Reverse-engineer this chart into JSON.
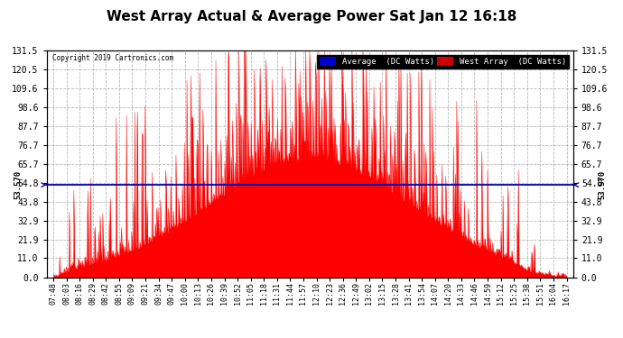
{
  "title": "West Array Actual & Average Power Sat Jan 12 16:18",
  "copyright": "Copyright 2019 Cartronics.com",
  "avg_line_value": 53.57,
  "ylim": [
    0.0,
    131.5
  ],
  "y_ticks": [
    0.0,
    11.0,
    21.9,
    32.9,
    43.8,
    54.8,
    65.7,
    76.7,
    87.7,
    98.6,
    109.6,
    120.5,
    131.5
  ],
  "fill_color": "#ff0000",
  "avg_line_color": "#0000bb",
  "background_color": "#ffffff",
  "grid_color": "#999999",
  "title_fontsize": 11,
  "legend_avg_bg": "#0000cc",
  "legend_west_bg": "#cc0000",
  "legend_text_color": "#ffffff",
  "x_tick_labels": [
    "07:48",
    "08:03",
    "08:16",
    "08:29",
    "08:42",
    "08:55",
    "09:09",
    "09:21",
    "09:34",
    "09:47",
    "10:00",
    "10:13",
    "10:26",
    "10:39",
    "10:52",
    "11:05",
    "11:18",
    "11:31",
    "11:44",
    "11:57",
    "12:10",
    "12:23",
    "12:36",
    "12:49",
    "13:02",
    "13:15",
    "13:28",
    "13:41",
    "13:54",
    "14:07",
    "14:20",
    "14:33",
    "14:46",
    "14:59",
    "15:12",
    "15:25",
    "15:38",
    "15:51",
    "16:04",
    "16:17"
  ],
  "num_points": 800
}
